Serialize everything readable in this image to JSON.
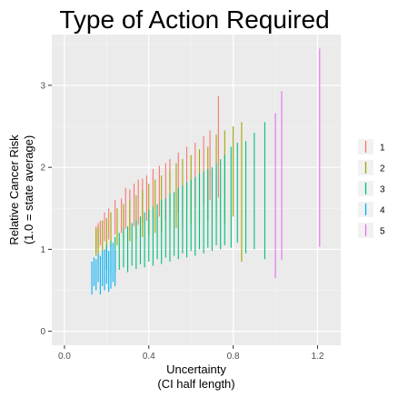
{
  "chart_data": {
    "type": "errorbar",
    "title": "Type of Action Required",
    "xlabel_line1": "Uncertainty",
    "xlabel_line2": "(CI half length)",
    "ylabel_line1": "Relative Cancer Risk",
    "ylabel_line2": "(1.0 = state average)",
    "xlim": [
      -0.06,
      1.31
    ],
    "ylim": [
      -0.17,
      3.62
    ],
    "x_ticks": [
      0.0,
      0.4,
      0.8,
      1.2
    ],
    "x_tick_labels": [
      "0.0",
      "0.4",
      "0.8",
      "1.2"
    ],
    "y_ticks": [
      0,
      1,
      2,
      3
    ],
    "y_tick_labels": [
      "0",
      "1",
      "2",
      "3"
    ],
    "grid": true,
    "legend_position": "right",
    "legend_entries": [
      "1",
      "2",
      "3",
      "4",
      "5"
    ],
    "series": [
      {
        "name": "1",
        "color": "#F8766D",
        "segments": [
          [
            0.15,
            0.98,
            1.28
          ],
          [
            0.16,
            1.02,
            1.32
          ],
          [
            0.17,
            1.05,
            1.35
          ],
          [
            0.19,
            1.1,
            1.45
          ],
          [
            0.21,
            1.12,
            1.5
          ],
          [
            0.24,
            1.18,
            1.6
          ],
          [
            0.27,
            1.2,
            1.62
          ],
          [
            0.29,
            1.25,
            1.75
          ],
          [
            0.31,
            1.22,
            1.73
          ],
          [
            0.33,
            1.28,
            1.8
          ],
          [
            0.35,
            1.3,
            1.85
          ],
          [
            0.37,
            1.32,
            1.86
          ],
          [
            0.39,
            1.35,
            1.9
          ],
          [
            0.42,
            1.38,
            1.98
          ],
          [
            0.45,
            1.4,
            2.02
          ],
          [
            0.48,
            1.35,
            2.05
          ],
          [
            0.5,
            1.42,
            2.1
          ],
          [
            0.54,
            1.45,
            2.18
          ],
          [
            0.58,
            1.48,
            2.25
          ],
          [
            0.62,
            1.5,
            2.3
          ],
          [
            0.66,
            1.55,
            2.38
          ],
          [
            0.69,
            1.6,
            2.45
          ],
          [
            0.73,
            1.63,
            2.87
          ]
        ]
      },
      {
        "name": "2",
        "color": "#A3A500",
        "segments": [
          [
            0.15,
            0.92,
            1.25
          ],
          [
            0.16,
            0.95,
            1.28
          ],
          [
            0.18,
            0.98,
            1.35
          ],
          [
            0.2,
            1.0,
            1.38
          ],
          [
            0.22,
            1.02,
            1.45
          ],
          [
            0.25,
            1.05,
            1.5
          ],
          [
            0.28,
            1.08,
            1.55
          ],
          [
            0.31,
            1.1,
            1.6
          ],
          [
            0.34,
            1.12,
            1.66
          ],
          [
            0.37,
            1.15,
            1.72
          ],
          [
            0.4,
            1.18,
            1.8
          ],
          [
            0.43,
            1.2,
            1.85
          ],
          [
            0.46,
            1.22,
            1.9
          ],
          [
            0.5,
            1.25,
            1.97
          ],
          [
            0.53,
            1.26,
            2.05
          ],
          [
            0.56,
            1.28,
            2.1
          ],
          [
            0.6,
            1.3,
            2.15
          ],
          [
            0.64,
            1.32,
            2.22
          ],
          [
            0.68,
            1.35,
            2.25
          ],
          [
            0.72,
            1.38,
            2.4
          ],
          [
            0.76,
            1.3,
            2.45
          ],
          [
            0.8,
            1.4,
            2.5
          ],
          [
            0.84,
            0.85,
            2.55
          ]
        ]
      },
      {
        "name": "3",
        "color": "#00BF7D",
        "segments": [
          [
            0.2,
            0.75,
            1.05
          ],
          [
            0.22,
            0.7,
            1.1
          ],
          [
            0.24,
            0.72,
            1.15
          ],
          [
            0.26,
            0.75,
            1.2
          ],
          [
            0.28,
            0.78,
            1.25
          ],
          [
            0.3,
            0.72,
            1.28
          ],
          [
            0.32,
            0.8,
            1.32
          ],
          [
            0.34,
            0.76,
            1.36
          ],
          [
            0.36,
            0.82,
            1.4
          ],
          [
            0.38,
            0.78,
            1.45
          ],
          [
            0.4,
            0.85,
            1.48
          ],
          [
            0.42,
            0.8,
            1.52
          ],
          [
            0.44,
            0.88,
            1.55
          ],
          [
            0.46,
            0.82,
            1.6
          ],
          [
            0.48,
            0.9,
            1.62
          ],
          [
            0.5,
            0.85,
            1.68
          ],
          [
            0.52,
            0.92,
            1.7
          ],
          [
            0.54,
            0.88,
            1.75
          ],
          [
            0.56,
            0.95,
            1.78
          ],
          [
            0.58,
            0.9,
            1.82
          ],
          [
            0.6,
            0.98,
            1.85
          ],
          [
            0.62,
            0.92,
            1.88
          ],
          [
            0.64,
            1.0,
            1.92
          ],
          [
            0.66,
            0.95,
            1.95
          ],
          [
            0.68,
            1.02,
            1.98
          ],
          [
            0.7,
            0.98,
            2.0
          ],
          [
            0.72,
            1.05,
            2.05
          ],
          [
            0.74,
            1.0,
            2.1
          ],
          [
            0.76,
            1.05,
            2.15
          ],
          [
            0.79,
            1.02,
            2.25
          ],
          [
            0.82,
            1.08,
            2.3
          ],
          [
            0.86,
            0.95,
            2.32
          ],
          [
            0.9,
            1.0,
            2.42
          ],
          [
            0.95,
            0.88,
            2.55
          ]
        ]
      },
      {
        "name": "4",
        "color": "#00B0F6",
        "segments": [
          [
            0.13,
            0.45,
            0.85
          ],
          [
            0.14,
            0.55,
            0.9
          ],
          [
            0.15,
            0.5,
            0.88
          ],
          [
            0.16,
            0.6,
            0.95
          ],
          [
            0.17,
            0.45,
            0.92
          ],
          [
            0.18,
            0.55,
            0.98
          ],
          [
            0.19,
            0.5,
            1.0
          ],
          [
            0.2,
            0.58,
            1.02
          ],
          [
            0.21,
            0.48,
            0.98
          ],
          [
            0.22,
            0.52,
            1.05
          ],
          [
            0.23,
            0.6,
            1.08
          ],
          [
            0.24,
            0.55,
            1.0
          ]
        ]
      },
      {
        "name": "5",
        "color": "#E76BF3",
        "segments": [
          [
            1.0,
            0.65,
            2.66
          ],
          [
            1.03,
            0.87,
            2.93
          ],
          [
            1.21,
            1.03,
            3.45
          ]
        ]
      }
    ]
  }
}
